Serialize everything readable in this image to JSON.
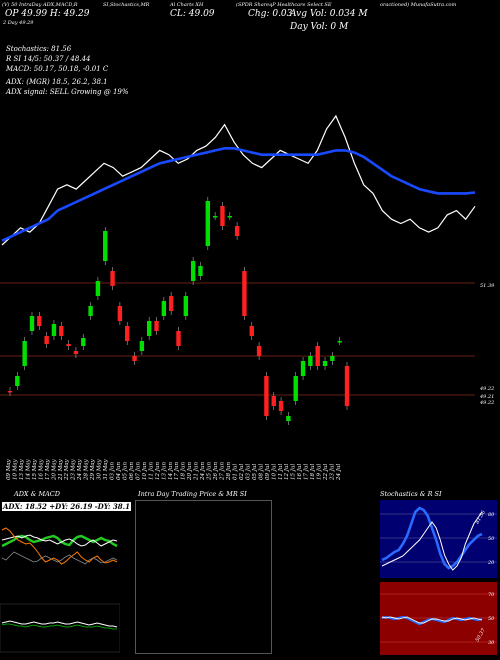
{
  "header": {
    "line1": [
      "(V) 50 IntraDay ADX,MACD,R",
      "SI,Stochastics,MR",
      "Al Charts XH",
      "(SPDR ShareqP Healthcare  Select SE",
      "oractioned) MunafaSutra.com"
    ],
    "open_label": "OP 49.99  H: 49.29",
    "day_label": "CL: 49.09",
    "chg_label": "Chg: 0.03",
    "avg_label": "Avg Vol: 0.034  M",
    "dayvol_label": "Day Vol: 0  M",
    "day_mini": "2  Day   49.29",
    "stoch_line": "Stochastics: 81.56",
    "rsi_line": "R                  SI 14/5: 50.37 / 48.44",
    "macd_line": "MACD: 50.17,  50.18, -0.01 C",
    "adx_line": "ADX:                      (MGR) 18.5,  26.2,  38.1",
    "adx_signal": "ADX  signal: SELL Growing @ 19%"
  },
  "price_labels": [
    "51.39",
    "49.22",
    "49.21",
    "49.22"
  ],
  "dates": [
    "09 May",
    "10 May",
    "13 May",
    "14 May",
    "15 May",
    "16 May",
    "17 May",
    "20 May",
    "21 May",
    "22 May",
    "23 May",
    "24 May",
    "28 May",
    "29 May",
    "30 May",
    "31 May",
    "03 Jun",
    "04 Jun",
    "05 Jun",
    "06 Jun",
    "07 Jun",
    "10 Jun",
    "11 Jun",
    "12 Jun",
    "13 Jun",
    "14 Jun",
    "17 Jun",
    "18 Jun",
    "20 Jun",
    "21 Jun",
    "24 Jun",
    "25 Jun",
    "26 Jun",
    "27 Jun",
    "28 Jun",
    "01 Jul",
    "02 Jul",
    "03 Jul",
    "05 Jul",
    "08 Jul",
    "09 Jul",
    "10 Jul",
    "11 Jul",
    "12 Jul",
    "15 Jul",
    "16 Jul",
    "17 Jul",
    "18 Jul",
    "19 Jul",
    "22 Jul",
    "23 Jul",
    "24 Jul"
  ],
  "panels": {
    "adx_title": "ADX  & MACD",
    "adx_readout": "ADX: 18.52  +DY: 26.19  -DY: 38.1",
    "intraday_title": "Intra  Day Trading Price  & MR                 SI",
    "stoch_title": "Stochastics & R                    SI",
    "stoch_levels": [
      "80",
      "50",
      "20"
    ],
    "rsi_levels": [
      "70",
      "50",
      "30"
    ],
    "stoch_val": "81.56",
    "rsi_val": "50.37"
  },
  "colors": {
    "up": "#00e000",
    "down": "#ff2020",
    "ma": "#1a4aff",
    "grid": "#8a2a1a",
    "stoch_bg": "#000070",
    "rsi_bg": "#8c0000"
  },
  "chart_data": {
    "type": "line",
    "x_categories": "dates",
    "price_line": [
      44,
      46,
      48,
      47,
      49,
      53,
      57,
      58,
      57,
      59,
      61,
      63,
      62,
      60,
      61,
      62,
      64,
      66,
      65,
      63,
      64,
      66,
      67,
      69,
      72,
      68,
      65,
      63,
      62,
      64,
      66,
      65,
      64,
      63,
      66,
      71,
      74,
      69,
      63,
      58,
      56,
      52,
      50,
      49,
      50,
      48,
      47,
      48,
      51,
      52,
      50,
      53
    ],
    "ma_line": [
      45,
      46,
      47,
      48,
      49,
      50,
      52,
      53,
      54,
      55,
      56,
      57,
      58,
      59,
      60,
      61,
      62,
      63,
      63.5,
      64,
      64.5,
      65,
      65.5,
      66,
      66.5,
      66.5,
      66,
      65.5,
      65,
      65,
      65,
      65,
      65,
      65,
      65,
      65.5,
      66,
      66,
      65.5,
      64.5,
      63,
      61.5,
      60,
      59,
      58,
      57,
      56.5,
      56,
      56,
      56,
      56,
      56.2
    ],
    "candles": [
      {
        "o": 49.25,
        "c": 49.24
      },
      {
        "o": 49.3,
        "c": 49.4
      },
      {
        "o": 49.5,
        "c": 49.75
      },
      {
        "o": 49.85,
        "c": 50.0
      },
      {
        "o": 50.0,
        "c": 49.9
      },
      {
        "o": 49.8,
        "c": 49.72
      },
      {
        "o": 49.8,
        "c": 49.92
      },
      {
        "o": 49.9,
        "c": 49.8
      },
      {
        "o": 49.72,
        "c": 49.7
      },
      {
        "o": 49.65,
        "c": 49.62
      },
      {
        "o": 49.7,
        "c": 49.78
      },
      {
        "o": 50.0,
        "c": 50.1
      },
      {
        "o": 50.2,
        "c": 50.35
      },
      {
        "o": 50.55,
        "c": 50.85
      },
      {
        "o": 50.45,
        "c": 50.3
      },
      {
        "o": 50.1,
        "c": 49.95
      },
      {
        "o": 49.9,
        "c": 49.75
      },
      {
        "o": 49.6,
        "c": 49.55
      },
      {
        "o": 49.65,
        "c": 49.75
      },
      {
        "o": 49.8,
        "c": 49.95
      },
      {
        "o": 49.95,
        "c": 49.85
      },
      {
        "o": 50.0,
        "c": 50.15
      },
      {
        "o": 50.2,
        "c": 50.05
      },
      {
        "o": 49.85,
        "c": 49.7
      },
      {
        "o": 50.0,
        "c": 50.2
      },
      {
        "o": 50.35,
        "c": 50.55
      },
      {
        "o": 50.4,
        "c": 50.5
      },
      {
        "o": 50.7,
        "c": 51.15
      },
      {
        "o": 51.0,
        "c": 51.0
      },
      {
        "o": 51.1,
        "c": 50.9
      },
      {
        "o": 51.0,
        "c": 51.0
      },
      {
        "o": 50.9,
        "c": 50.8
      },
      {
        "o": 50.45,
        "c": 50.0
      },
      {
        "o": 49.9,
        "c": 49.8
      },
      {
        "o": 49.7,
        "c": 49.6
      },
      {
        "o": 49.4,
        "c": 49.0
      },
      {
        "o": 49.2,
        "c": 49.1
      },
      {
        "o": 49.15,
        "c": 49.05
      },
      {
        "o": 48.95,
        "c": 49.0
      },
      {
        "o": 49.15,
        "c": 49.4
      },
      {
        "o": 49.4,
        "c": 49.55
      },
      {
        "o": 49.5,
        "c": 49.6
      },
      {
        "o": 49.7,
        "c": 49.5
      },
      {
        "o": 49.5,
        "c": 49.55
      },
      {
        "o": 49.55,
        "c": 49.6
      },
      {
        "o": 49.75,
        "c": 49.75
      },
      {
        "o": 49.5,
        "c": 49.1
      }
    ]
  }
}
